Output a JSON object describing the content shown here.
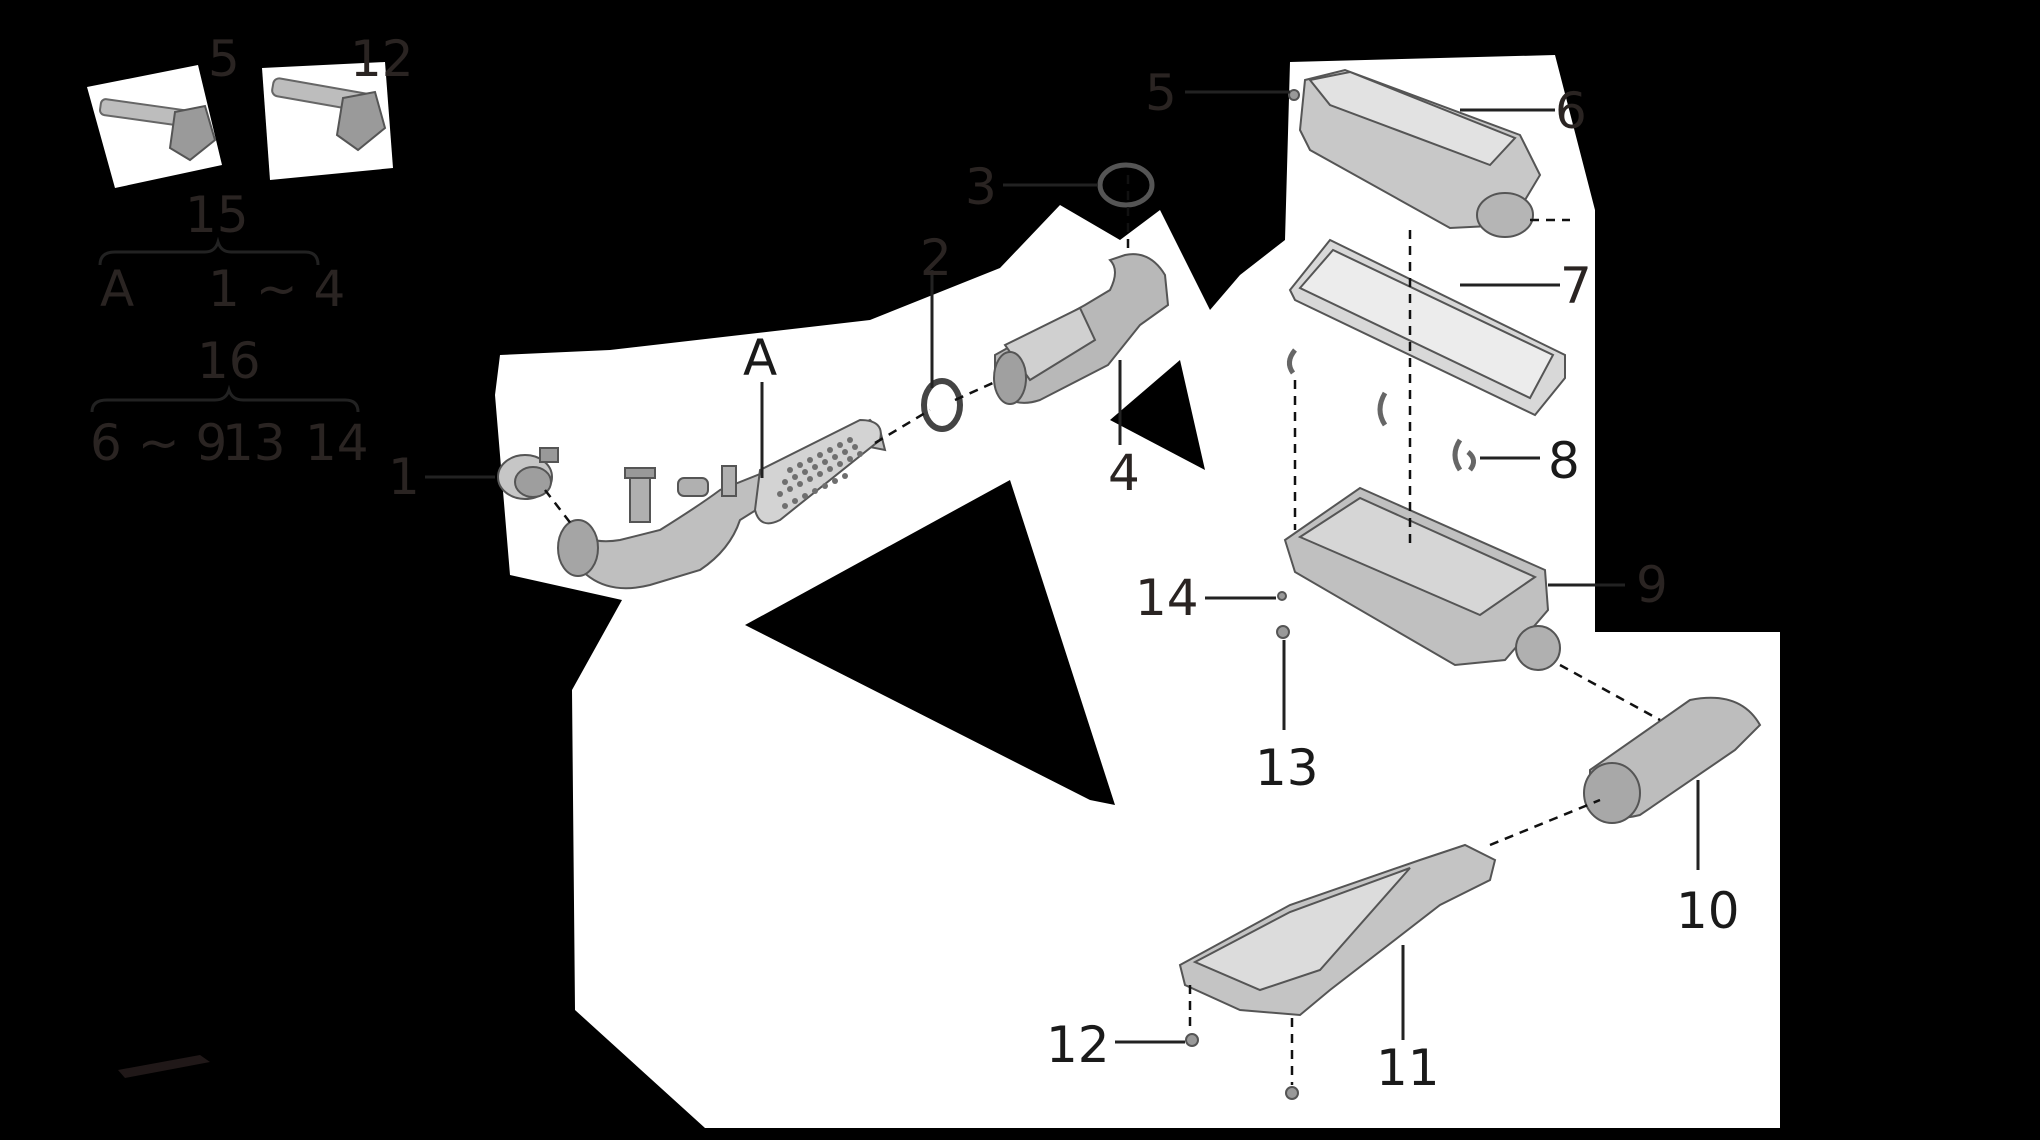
{
  "legend": {
    "bolt_labels": [
      "5",
      "12"
    ],
    "group_15": {
      "label": "15",
      "members": [
        "A",
        "1 ~ 4"
      ]
    },
    "group_16": {
      "label": "16",
      "members": [
        "6 ~ 9",
        "13",
        "14"
      ]
    }
  },
  "callouts": {
    "c1": "1",
    "c2": "2",
    "c3": "3",
    "c4": "4",
    "c5": "5",
    "c6": "6",
    "c7": "7",
    "c8": "8",
    "c9": "9",
    "c10": "10",
    "c11": "11",
    "c12": "12",
    "c13": "13",
    "c14": "14",
    "cA": "A"
  },
  "colors": {
    "background": "#000000",
    "panel": "#ffffff",
    "part_fill": "#c4c4c4",
    "label": "#2a2422"
  }
}
